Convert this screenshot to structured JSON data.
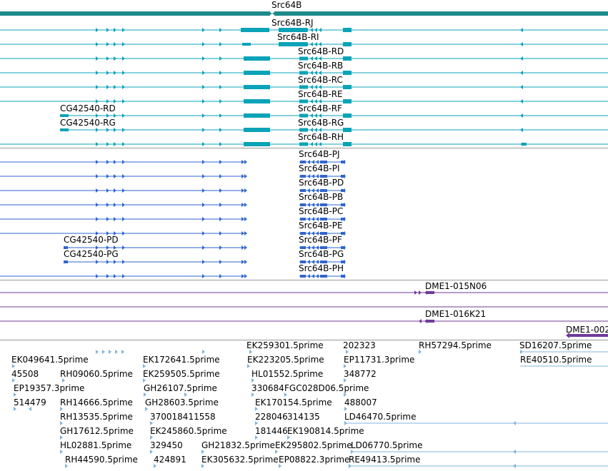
{
  "gene": {
    "title": "Src64B",
    "color": "#1e8a8a",
    "transcript_color": "#0aa3b8",
    "protein_color": "#2f66d0",
    "clone_color": "#6f3a99",
    "est_color": "#7fb4dc"
  },
  "transcripts": [
    {
      "label": "Src64B-RJ"
    },
    {
      "label": "Src64B-RI"
    },
    {
      "label": "Src64B-RD"
    },
    {
      "label": "Src64B-RB"
    },
    {
      "label": "Src64B-RC"
    },
    {
      "label": "Src64B-RE"
    },
    {
      "label": "Src64B-RF",
      "left_label": "CG42540-RD"
    },
    {
      "label": "Src64B-RG",
      "left_label": "CG42540-RG"
    },
    {
      "label": "Src64B-RH"
    }
  ],
  "proteins": [
    {
      "label": "Src64B-PJ"
    },
    {
      "label": "Src64B-PI"
    },
    {
      "label": "Src64B-PD"
    },
    {
      "label": "Src64B-PB"
    },
    {
      "label": "Src64B-PC"
    },
    {
      "label": "Src64B-PE"
    },
    {
      "label": "Src64B-PF",
      "left_label": "CG42540-PD"
    },
    {
      "label": "Src64B-PG",
      "left_label": "CG42540-PG"
    },
    {
      "label": "Src64B-PH"
    }
  ],
  "clones": [
    "DME1-015N06",
    "DME1-016K21",
    "DME1-002"
  ],
  "ests": [
    "EK259301.5prime",
    "202323",
    "RH57294.5prime",
    "SD16207.5prime",
    "EK049641.5prime",
    "EK172641.5prime",
    "EK223205.5prime",
    "EP11731.3prime",
    "RE40510.5prime",
    "45508",
    "RH09060.5prime",
    "EK259505.5prime",
    "HL01552.5prime",
    "348772",
    "EP19357.3prime",
    "GH26107.5prime",
    "330684",
    "FGC028D06.5prime",
    "514479",
    "RH14666.5prime",
    "GH28603.5prime",
    "EK170154.5prime",
    "488007",
    "RH13535.5prime",
    "370018411558",
    "228046",
    "314135",
    "LD46470.5prime",
    "GH17612.5prime",
    "EK245860.5prime",
    "181446",
    "EK190814.5prime",
    "HL02881.5prime",
    "329450",
    "GH21832.5prime",
    "EK295802.5prime",
    "LD06770.5prime",
    "RH44590.5prime",
    "424891",
    "EK305632.5prime",
    "EP08822.3prime",
    "RE49413.5prime"
  ]
}
